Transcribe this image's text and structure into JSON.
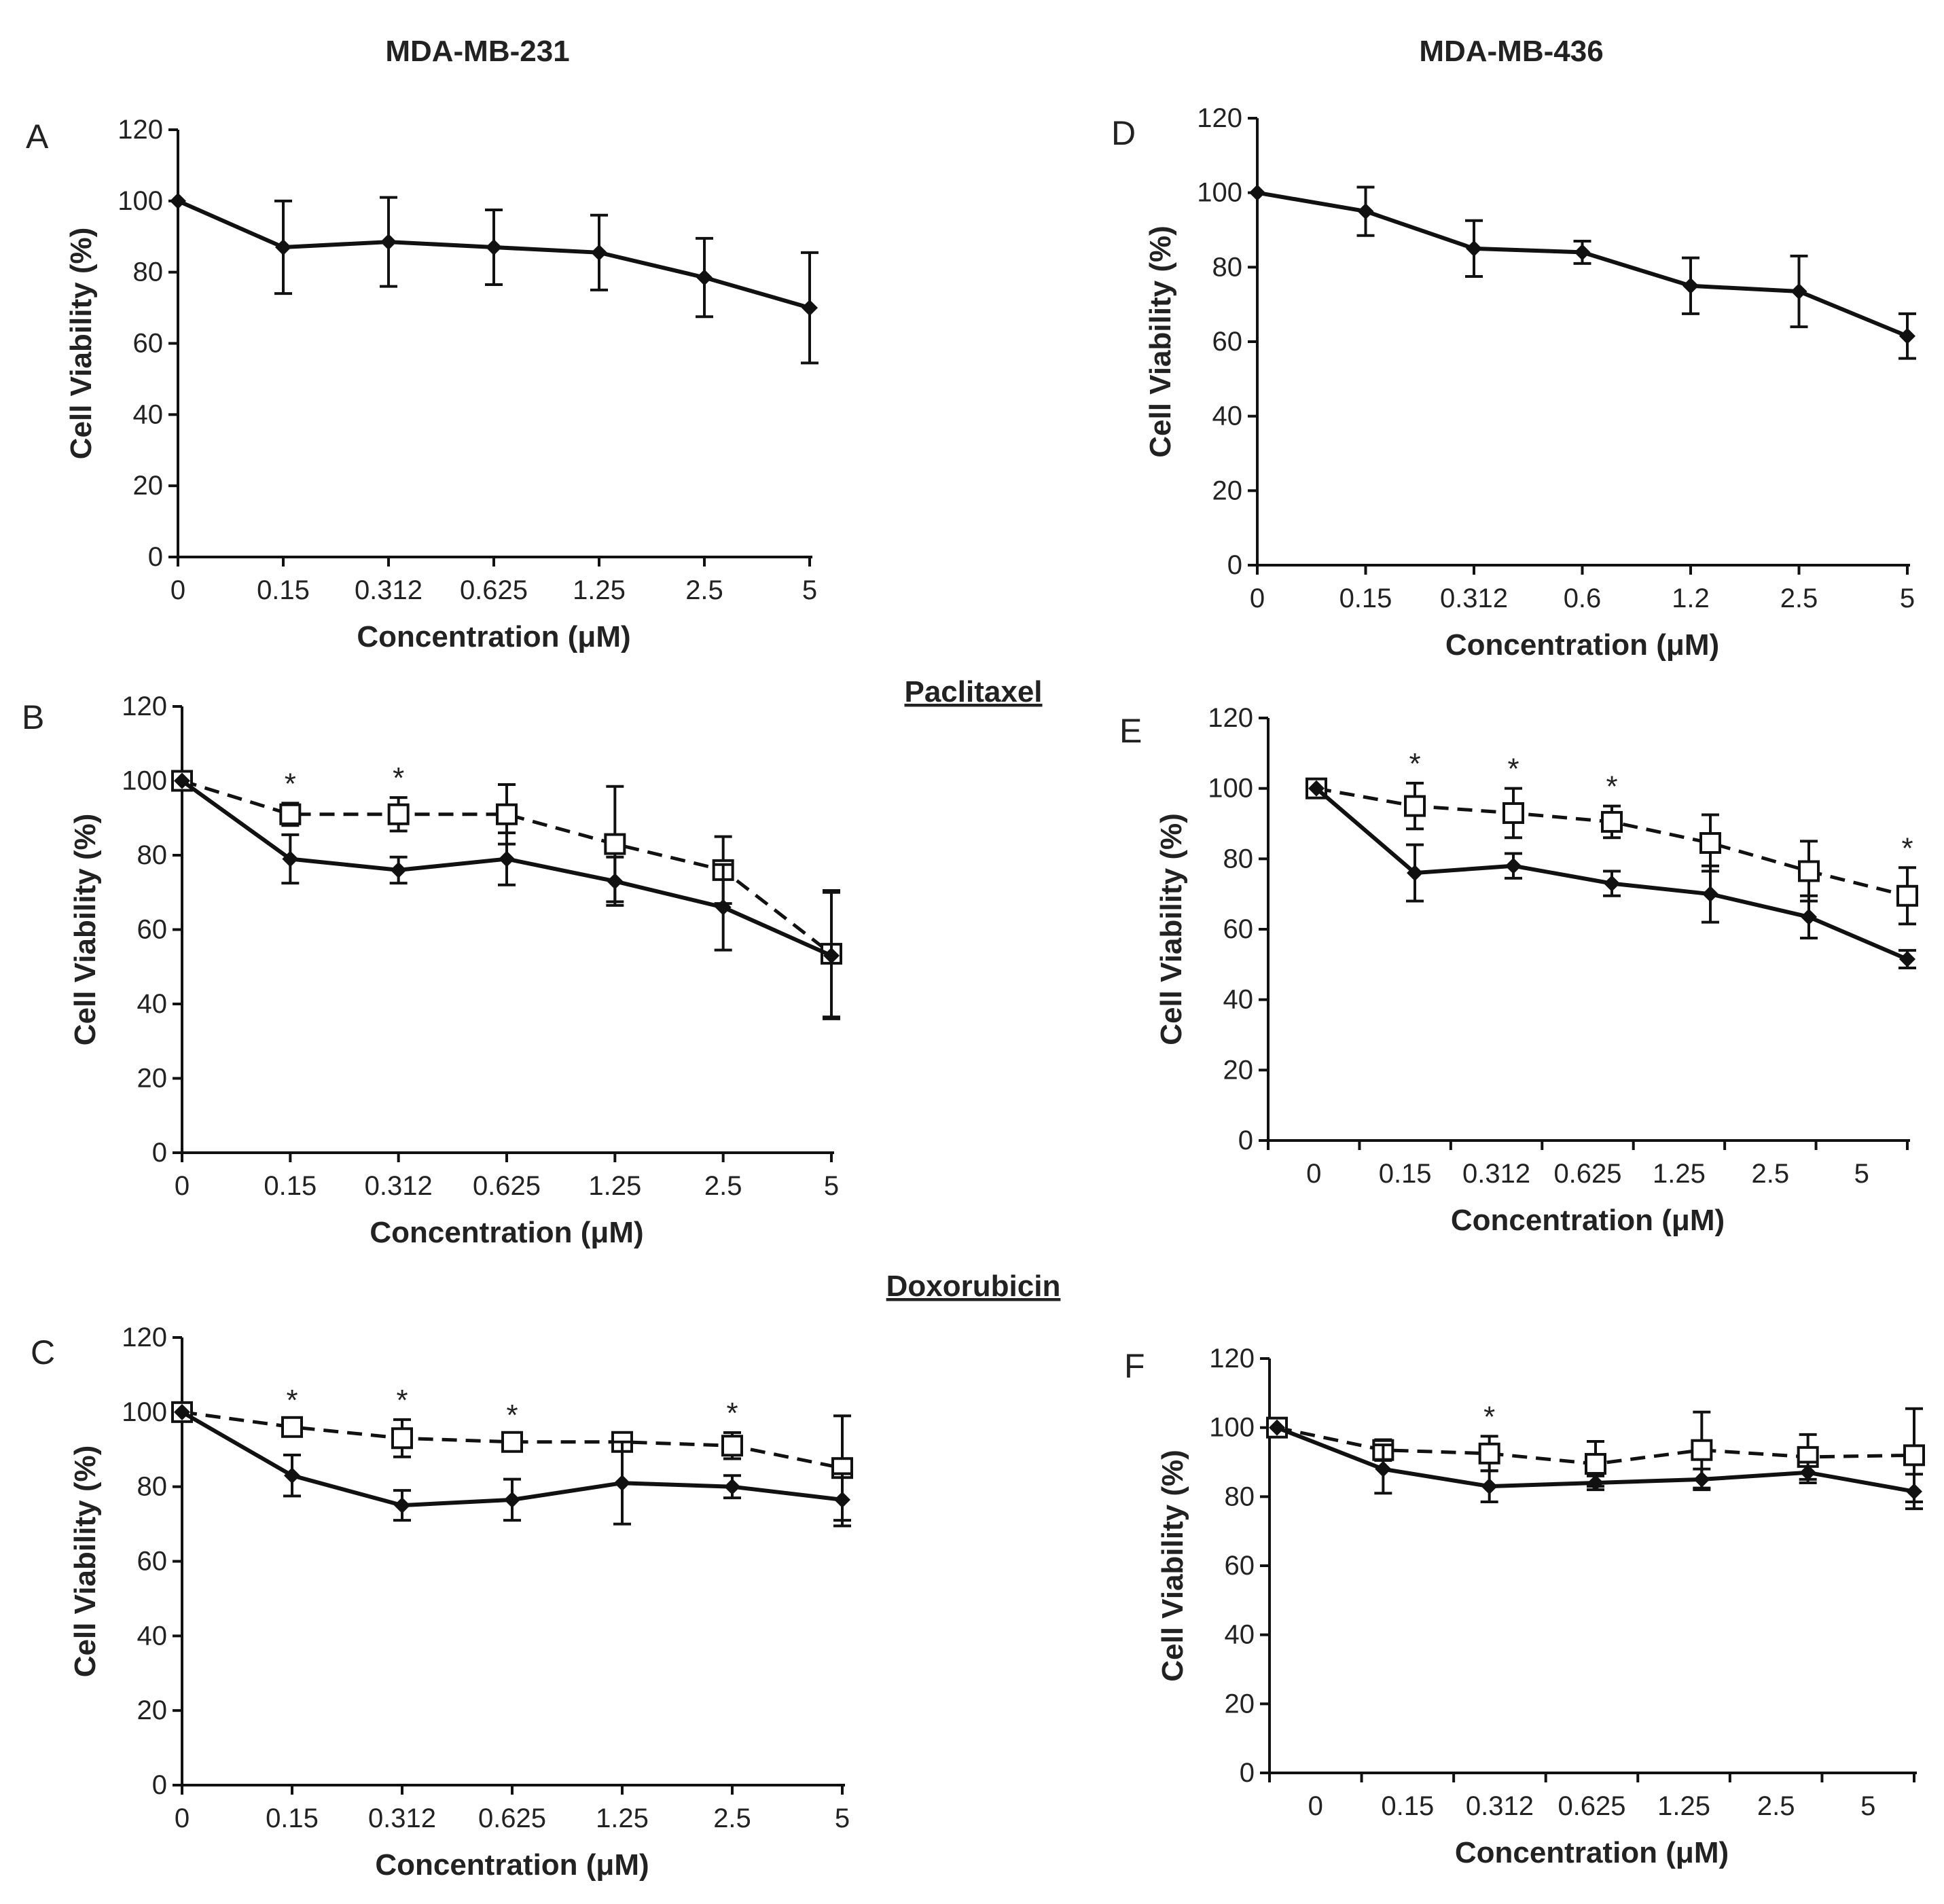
{
  "figure": {
    "column_titles": [
      "MDA-MB-231",
      "MDA-MB-436"
    ],
    "drug_labels": [
      "Paclitaxel",
      "Doxorubicin"
    ],
    "series_names": [
      "solid-diamond",
      "open-square-dashed"
    ]
  },
  "chart_data": [
    {
      "panel": "A",
      "type": "line",
      "title": "MDA-MB-231",
      "categories": [
        "0",
        "0.15",
        "0.312",
        "0.625",
        "1.25",
        "2.5",
        "5"
      ],
      "xlabel": "Concentration (μM)",
      "ylabel": "Cell Viability (%)",
      "ylim": [
        0,
        120
      ],
      "yticks": [
        0,
        20,
        40,
        60,
        80,
        100,
        120
      ],
      "series": [
        {
          "name": "solid",
          "marker": "diamond",
          "values": [
            100,
            87,
            88.5,
            87,
            85.5,
            78.5,
            70
          ],
          "errors": [
            0,
            13,
            12.5,
            10.5,
            10.5,
            11,
            15.5
          ]
        }
      ],
      "asterisks": []
    },
    {
      "panel": "B",
      "type": "line",
      "categories": [
        "0",
        "0.15",
        "0.312",
        "0.625",
        "1.25",
        "2.5",
        "5"
      ],
      "xlabel": "Concentration (μM)",
      "ylabel": "Cell Viability (%)",
      "ylim": [
        0,
        120
      ],
      "yticks": [
        0,
        20,
        40,
        60,
        80,
        100,
        120
      ],
      "series": [
        {
          "name": "solid",
          "marker": "diamond",
          "values": [
            100,
            79,
            76,
            79,
            73,
            66,
            53
          ],
          "errors": [
            0,
            6.5,
            3.5,
            7,
            6.5,
            11.5,
            17
          ]
        },
        {
          "name": "dashed",
          "marker": "square",
          "values": [
            100,
            91,
            91,
            91,
            83,
            76,
            53.5
          ],
          "errors": [
            0,
            3,
            4.5,
            8,
            15.5,
            9,
            17
          ]
        }
      ],
      "asterisks": [
        1,
        2
      ]
    },
    {
      "panel": "C",
      "type": "line",
      "categories": [
        "0",
        "0.15",
        "0.312",
        "0.625",
        "1.25",
        "2.5",
        "5"
      ],
      "xlabel": "Concentration (μM)",
      "ylabel": "Cell Viability (%)",
      "ylim": [
        0,
        120
      ],
      "yticks": [
        0,
        20,
        40,
        60,
        80,
        100,
        120
      ],
      "series": [
        {
          "name": "solid",
          "marker": "diamond",
          "values": [
            100,
            83,
            75,
            76.5,
            81,
            80,
            76.5
          ],
          "errors": [
            0,
            5.5,
            4,
            5.5,
            11,
            3,
            7
          ]
        },
        {
          "name": "dashed",
          "marker": "square",
          "values": [
            100,
            96,
            93,
            92,
            92,
            91,
            85
          ],
          "errors": [
            0,
            2,
            5,
            2,
            2,
            3.5,
            14
          ]
        }
      ],
      "asterisks": [
        1,
        2,
        3,
        5
      ]
    },
    {
      "panel": "D",
      "type": "line",
      "title": "MDA-MB-436",
      "categories": [
        "0",
        "0.15",
        "0.312",
        "0.6",
        "1.2",
        "2.5",
        "5"
      ],
      "xlabel": "Concentration (μM)",
      "ylabel": "Cell Viability (%)",
      "ylim": [
        0,
        120
      ],
      "yticks": [
        0,
        20,
        40,
        60,
        80,
        100,
        120
      ],
      "series": [
        {
          "name": "solid",
          "marker": "diamond",
          "values": [
            100,
            95,
            85,
            84,
            75,
            73.5,
            61.5
          ],
          "errors": [
            0,
            6.5,
            7.5,
            3,
            7.5,
            9.5,
            6
          ]
        }
      ],
      "asterisks": []
    },
    {
      "panel": "E",
      "type": "line",
      "categories": [
        "0",
        "0.15",
        "0.312",
        "0.625",
        "1.25",
        "2.5",
        "5"
      ],
      "xlabel": "Concentration (μM)",
      "ylabel": "Cell Viability (%)",
      "ylim": [
        0,
        120
      ],
      "yticks": [
        0,
        20,
        40,
        60,
        80,
        100,
        120
      ],
      "series": [
        {
          "name": "solid",
          "marker": "diamond",
          "values": [
            100,
            76,
            78,
            73,
            70,
            63.5,
            51.5
          ],
          "errors": [
            0,
            8,
            3.5,
            3.5,
            8,
            6,
            2.5
          ]
        },
        {
          "name": "dashed",
          "marker": "square",
          "values": [
            100,
            95,
            93,
            90.5,
            84.5,
            76.5,
            69.5
          ],
          "errors": [
            0,
            6.5,
            7,
            4.5,
            8,
            8.5,
            8
          ]
        }
      ],
      "asterisks": [
        1,
        2,
        3,
        6
      ]
    },
    {
      "panel": "F",
      "type": "line",
      "categories": [
        "0",
        "0.15",
        "0.312",
        "0.625",
        "1.25",
        "2.5",
        "5"
      ],
      "xlabel": "Concentration (μM)",
      "ylabel": "Cell Viability (%)",
      "ylim": [
        0,
        120
      ],
      "yticks": [
        0,
        20,
        40,
        60,
        80,
        100,
        120
      ],
      "series": [
        {
          "name": "solid",
          "marker": "diamond",
          "values": [
            100,
            88,
            83,
            84,
            85,
            87,
            81.5
          ],
          "errors": [
            0,
            7,
            4.5,
            2,
            3,
            3,
            5
          ]
        },
        {
          "name": "dashed",
          "marker": "square",
          "values": [
            100,
            93.5,
            92.5,
            89.5,
            93.5,
            91.5,
            92
          ],
          "errors": [
            0,
            3,
            5,
            6.5,
            11,
            6.5,
            13.5
          ]
        }
      ],
      "asterisks": [
        2
      ]
    }
  ]
}
